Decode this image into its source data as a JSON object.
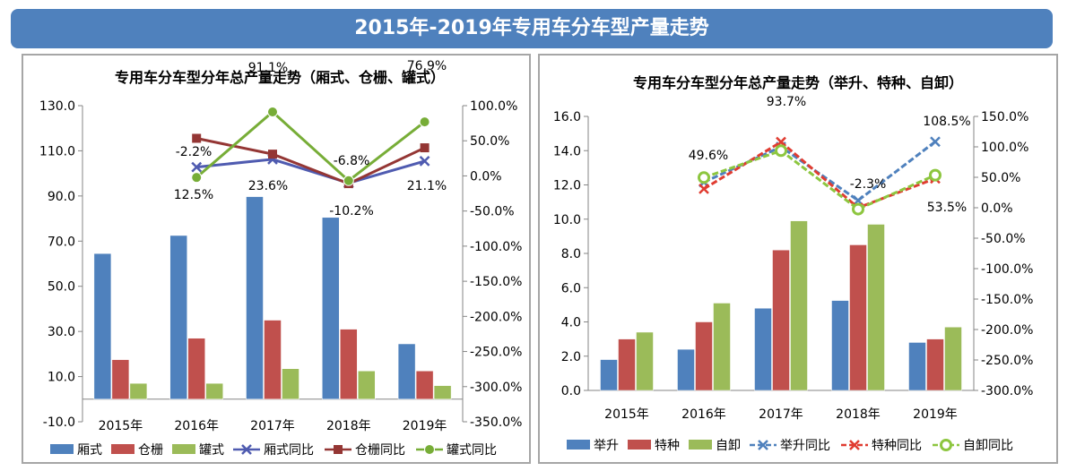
{
  "banner": {
    "title": "2015年-2019年专用车分车型产量走势"
  },
  "chart_data": [
    {
      "type": "bar",
      "title": "专用车分车型分年总产量走势（厢式、仓栅、罐式）",
      "categories": [
        "2015年",
        "2016年",
        "2017年",
        "2018年",
        "2019年"
      ],
      "ylim": [
        -10,
        130
      ],
      "yticks": [
        "-10.0",
        "10.0",
        "30.0",
        "50.0",
        "70.0",
        "90.0",
        "110.0",
        "130.0"
      ],
      "y2lim": [
        -350,
        100
      ],
      "y2ticks": [
        "-350.0%",
        "-300.0%",
        "-250.0%",
        "-200.0%",
        "-150.0%",
        "-100.0%",
        "-50.0%",
        "0.0%",
        "50.0%",
        "100.0%"
      ],
      "series": [
        {
          "name": "厢式",
          "values": [
            64.5,
            72.5,
            89.7,
            80.5,
            24.5
          ],
          "color": "#4f81bd"
        },
        {
          "name": "仓栅",
          "values": [
            17.5,
            27.0,
            35.0,
            31.0,
            12.5
          ],
          "color": "#c0504d"
        },
        {
          "name": "罐式",
          "values": [
            7.0,
            7.0,
            13.5,
            12.5,
            6.0
          ],
          "color": "#9bbb59"
        }
      ],
      "line_series": [
        {
          "name": "厢式同比",
          "values": [
            null,
            12.5,
            23.6,
            -10.2,
            21.1
          ],
          "color": "#4f5bb0",
          "marker": "x"
        },
        {
          "name": "仓栅同比",
          "values": [
            null,
            53.5,
            31.0,
            -11.0,
            40.0
          ],
          "color": "#943634",
          "marker": "square"
        },
        {
          "name": "罐式同比",
          "values": [
            null,
            -2.2,
            91.1,
            -6.8,
            76.9
          ],
          "color": "#77ad37",
          "marker": "circle"
        }
      ],
      "annotations": [
        "-2.2%",
        "12.5%",
        "91.1%",
        "23.6%",
        "-6.8%",
        "-10.2%",
        "76.9%",
        "21.1%"
      ]
    },
    {
      "type": "bar",
      "title": "专用车分车型分年总产量走势（举升、特种、自卸）",
      "categories": [
        "2015年",
        "2016年",
        "2017年",
        "2018年",
        "2019年"
      ],
      "ylim": [
        0,
        16
      ],
      "yticks": [
        "0.0",
        "2.0",
        "4.0",
        "6.0",
        "8.0",
        "10.0",
        "12.0",
        "14.0",
        "16.0"
      ],
      "y2lim": [
        -300,
        150
      ],
      "y2ticks": [
        "-300.0%",
        "-250.0%",
        "-200.0%",
        "-150.0%",
        "-100.0%",
        "-50.0%",
        "0.0%",
        "50.0%",
        "100.0%",
        "150.0%"
      ],
      "series": [
        {
          "name": "举升",
          "values": [
            1.8,
            2.4,
            4.8,
            5.25,
            2.8
          ],
          "color": "#4f81bd"
        },
        {
          "name": "特种",
          "values": [
            3.0,
            4.0,
            8.2,
            8.5,
            3.0
          ],
          "color": "#c0504d"
        },
        {
          "name": "自卸",
          "values": [
            3.4,
            5.1,
            9.9,
            9.7,
            3.7
          ],
          "color": "#9bbb59"
        }
      ],
      "line_series": [
        {
          "name": "举升同比",
          "values": [
            null,
            42.0,
            100.0,
            12.0,
            108.5
          ],
          "color": "#4f81bd",
          "marker": "x",
          "dash": true
        },
        {
          "name": "特种同比",
          "values": [
            null,
            31.0,
            108.0,
            0.0,
            48.0
          ],
          "color": "#e03c31",
          "marker": "x",
          "dash": true
        },
        {
          "name": "自卸同比",
          "values": [
            null,
            49.6,
            93.7,
            -2.3,
            53.5
          ],
          "color": "#8dc63f",
          "marker": "circle-open",
          "dash": true
        }
      ],
      "annotations": [
        "49.6%",
        "93.7%",
        "-2.3%",
        "108.5%",
        "53.5%"
      ]
    }
  ]
}
